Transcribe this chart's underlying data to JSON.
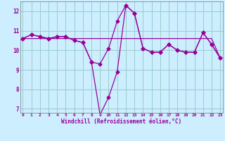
{
  "xlabel": "Windchill (Refroidissement éolien,°C)",
  "background_color": "#cceeff",
  "grid_color": "#99cccc",
  "line_color": "#990099",
  "x_hours": [
    0,
    1,
    2,
    3,
    4,
    5,
    6,
    7,
    8,
    9,
    10,
    11,
    12,
    13,
    14,
    15,
    16,
    17,
    18,
    19,
    20,
    21,
    22,
    23
  ],
  "series1": [
    10.6,
    10.8,
    10.7,
    10.6,
    10.7,
    10.7,
    10.5,
    10.4,
    9.4,
    9.3,
    10.1,
    11.5,
    12.3,
    11.9,
    10.1,
    9.9,
    9.9,
    10.3,
    10.0,
    9.9,
    9.9,
    10.9,
    10.3,
    9.6
  ],
  "series2": [
    10.6,
    10.8,
    10.7,
    10.6,
    10.7,
    10.7,
    10.5,
    10.4,
    9.4,
    6.7,
    7.6,
    8.9,
    12.3,
    11.9,
    10.1,
    9.9,
    9.9,
    10.3,
    10.0,
    9.9,
    9.9,
    10.9,
    10.3,
    9.6
  ],
  "series3": [
    10.6,
    10.6,
    10.6,
    10.6,
    10.6,
    10.6,
    10.6,
    10.6,
    10.6,
    10.6,
    10.6,
    10.6,
    10.6,
    10.6,
    10.6,
    10.6,
    10.6,
    10.6,
    10.6,
    10.6,
    10.6,
    10.6,
    10.6,
    9.6
  ],
  "ylim": [
    6.8,
    12.5
  ],
  "yticks": [
    7,
    8,
    9,
    10,
    11,
    12
  ],
  "xlim": [
    -0.3,
    23.3
  ]
}
